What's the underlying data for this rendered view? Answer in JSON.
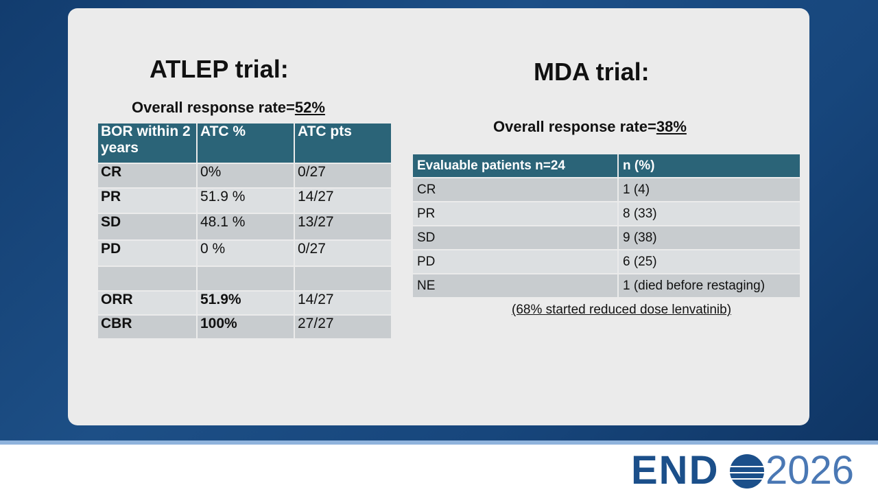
{
  "left": {
    "title": "ATLEP trial:",
    "subtitle": {
      "text": "Overall response rate=",
      "value": "52%"
    },
    "table": {
      "header": [
        "BOR within 2 years",
        "ATC %",
        "ATC pts"
      ],
      "rows": [
        [
          "CR",
          "0%",
          "0/27"
        ],
        [
          "PR",
          "51.9 %",
          "14/27"
        ],
        [
          "SD",
          "48.1 %",
          "13/27"
        ],
        [
          "PD",
          " 0 %",
          " 0/27"
        ]
      ],
      "summary_rows": [
        [
          "ORR",
          "51.9%",
          "14/27"
        ],
        [
          "CBR",
          "100%",
          "27/27"
        ]
      ]
    }
  },
  "right": {
    "title": "MDA trial:",
    "subtitle": {
      "text": "Overall response rate=",
      "value": "38%"
    },
    "table": {
      "header": [
        "Evaluable patients n=24",
        "n (%)"
      ],
      "rows": [
        [
          "CR",
          "1 (4)"
        ],
        [
          "PR",
          "8 (33)"
        ],
        [
          "SD",
          "9 (38)"
        ],
        [
          "PD",
          "6 (25)"
        ],
        [
          "NE",
          "1 (died before restaging)"
        ]
      ]
    },
    "note": "(68% started reduced dose lenvatinib)"
  },
  "logo": {
    "brand": "END",
    "year": "2026"
  }
}
